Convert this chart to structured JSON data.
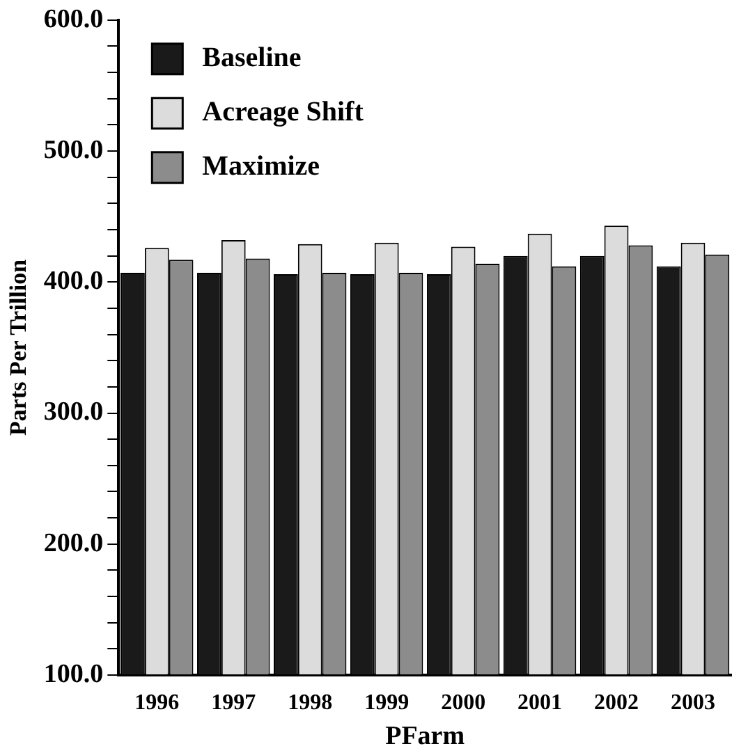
{
  "chart_data": {
    "type": "bar",
    "xlabel": "PFarm",
    "ylabel": "Parts Per Trillion",
    "categories": [
      "1996",
      "1997",
      "1998",
      "1999",
      "2000",
      "2001",
      "2002",
      "2003"
    ],
    "series": [
      {
        "name": "Baseline",
        "color": "#1a1a1a",
        "values": [
          407,
          407,
          406,
          406,
          406,
          420,
          420,
          412
        ]
      },
      {
        "name": "Acreage Shift",
        "color": "#dcdcdc",
        "values": [
          426,
          432,
          429,
          430,
          427,
          437,
          443,
          430
        ]
      },
      {
        "name": "Maximize",
        "color": "#8c8c8c",
        "values": [
          417,
          418,
          407,
          407,
          414,
          412,
          428,
          421
        ]
      }
    ],
    "ylim": [
      100,
      600
    ],
    "yticks": [
      {
        "value": 100,
        "label": "100.0"
      },
      {
        "value": 120,
        "label": null
      },
      {
        "value": 140,
        "label": null
      },
      {
        "value": 160,
        "label": null
      },
      {
        "value": 180,
        "label": null
      },
      {
        "value": 200,
        "label": "200.0"
      },
      {
        "value": 220,
        "label": null
      },
      {
        "value": 240,
        "label": null
      },
      {
        "value": 260,
        "label": null
      },
      {
        "value": 280,
        "label": null
      },
      {
        "value": 300,
        "label": "300.0"
      },
      {
        "value": 320,
        "label": null
      },
      {
        "value": 340,
        "label": null
      },
      {
        "value": 360,
        "label": null
      },
      {
        "value": 380,
        "label": null
      },
      {
        "value": 400,
        "label": "400.0"
      },
      {
        "value": 420,
        "label": null
      },
      {
        "value": 440,
        "label": null
      },
      {
        "value": 460,
        "label": null
      },
      {
        "value": 480,
        "label": null
      },
      {
        "value": 500,
        "label": "500.0"
      },
      {
        "value": 520,
        "label": null
      },
      {
        "value": 540,
        "label": null
      },
      {
        "value": 560,
        "label": null
      },
      {
        "value": 580,
        "label": null
      },
      {
        "value": 600,
        "label": "600.0"
      }
    ],
    "grid": false,
    "legend": "top left"
  }
}
